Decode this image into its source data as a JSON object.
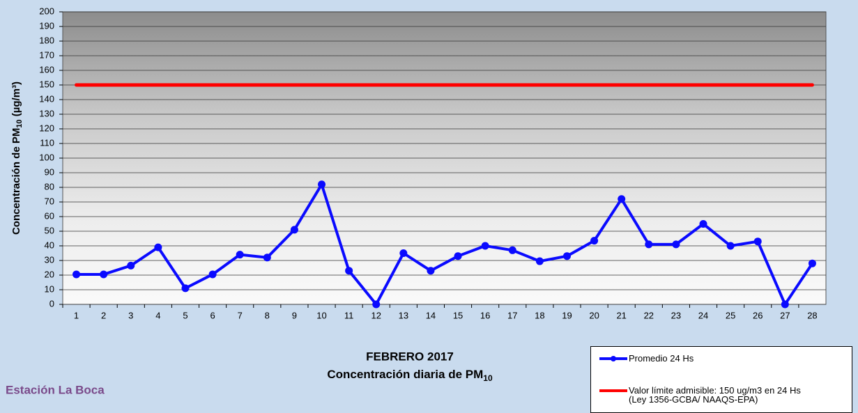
{
  "chart_data": {
    "type": "line",
    "title": "FEBRERO 2017",
    "subtitle": {
      "text": "Concentración diaria de PM",
      "sub": "10"
    },
    "y_label": {
      "text": "Concentración de PM",
      "sub": "10",
      "unit": " (µg/m³)"
    },
    "station": "Estación La Boca",
    "categories": [
      "1",
      "2",
      "3",
      "4",
      "5",
      "6",
      "7",
      "8",
      "9",
      "10",
      "11",
      "12",
      "13",
      "14",
      "15",
      "16",
      "17",
      "18",
      "19",
      "20",
      "21",
      "22",
      "23",
      "24",
      "25",
      "26",
      "27",
      "28"
    ],
    "ylim": [
      0,
      200
    ],
    "yticks": [
      0,
      10,
      20,
      30,
      40,
      50,
      60,
      70,
      80,
      90,
      100,
      110,
      120,
      130,
      140,
      150,
      160,
      170,
      180,
      190,
      200
    ],
    "grid": true,
    "series": [
      {
        "name": "Promedio 24 Hs",
        "color": "#0a0aff",
        "marker": true,
        "values": [
          20.5,
          20.5,
          26.5,
          39,
          11,
          20.5,
          34,
          32,
          51,
          82,
          23,
          0,
          35,
          23,
          33,
          40,
          37,
          29.5,
          33,
          43.5,
          72,
          41,
          41,
          55,
          40,
          43,
          0,
          28
        ]
      },
      {
        "name": "Valor límite admisible: 150 ug/m3 en 24 Hs\n(Ley 1356-GCBA/ NAAQS-EPA)",
        "color": "#ff0000",
        "marker": false,
        "values": [
          150,
          150,
          150,
          150,
          150,
          150,
          150,
          150,
          150,
          150,
          150,
          150,
          150,
          150,
          150,
          150,
          150,
          150,
          150,
          150,
          150,
          150,
          150,
          150,
          150,
          150,
          150,
          150
        ]
      }
    ]
  }
}
